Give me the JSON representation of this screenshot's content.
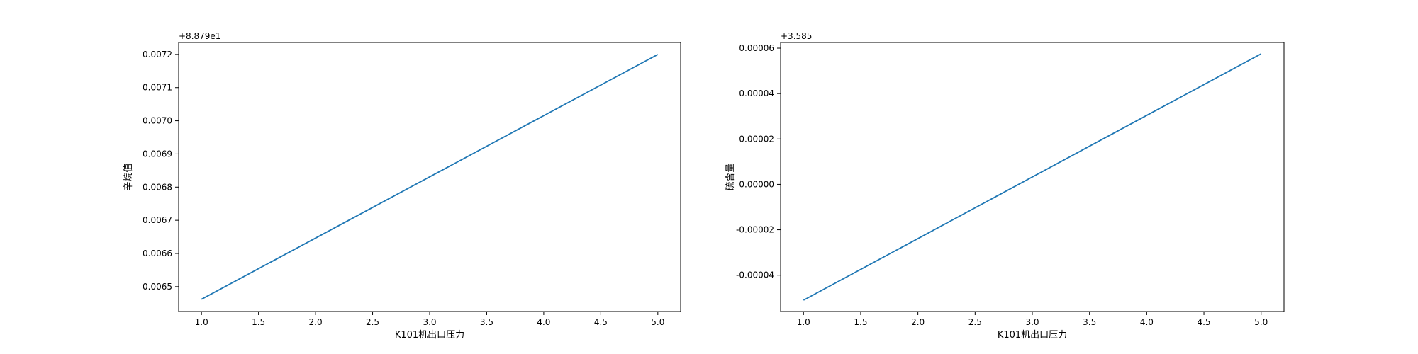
{
  "chart_data": [
    {
      "type": "line",
      "title": "",
      "xlabel": "K101机出口压力",
      "ylabel": "辛烷值",
      "offset_label": "+8.879e1",
      "xlim": [
        0.8,
        5.2
      ],
      "ylim": [
        0.006425,
        0.007236
      ],
      "xticks": [
        1.0,
        1.5,
        2.0,
        2.5,
        3.0,
        3.5,
        4.0,
        4.5,
        5.0
      ],
      "xtick_labels": [
        "1.0",
        "1.5",
        "2.0",
        "2.5",
        "3.0",
        "3.5",
        "4.0",
        "4.5",
        "5.0"
      ],
      "yticks": [
        0.0065,
        0.0066,
        0.0067,
        0.0068,
        0.0069,
        0.007,
        0.0071,
        0.0072
      ],
      "ytick_labels": [
        "0.0065",
        "0.0066",
        "0.0067",
        "0.0068",
        "0.0069",
        "0.0070",
        "0.0071",
        "0.0072"
      ],
      "grid": false,
      "series": [
        {
          "x": [
            1.0,
            5.0
          ],
          "y": [
            0.006462,
            0.0072
          ],
          "color": "#1f77b4"
        }
      ]
    },
    {
      "type": "line",
      "title": "",
      "xlabel": "K101机出口压力",
      "ylabel": "硫含量",
      "offset_label": "+3.585",
      "xlim": [
        0.8,
        5.2
      ],
      "ylim": [
        -5.6e-05,
        6.25e-05
      ],
      "xticks": [
        1.0,
        1.5,
        2.0,
        2.5,
        3.0,
        3.5,
        4.0,
        4.5,
        5.0
      ],
      "xtick_labels": [
        "1.0",
        "1.5",
        "2.0",
        "2.5",
        "3.0",
        "3.5",
        "4.0",
        "4.5",
        "5.0"
      ],
      "yticks": [
        -4e-05,
        -2e-05,
        0.0,
        2e-05,
        4e-05,
        6e-05
      ],
      "ytick_labels": [
        "-0.00004",
        "-0.00002",
        "0.00000",
        "0.00002",
        "0.00004",
        "0.00006"
      ],
      "grid": false,
      "series": [
        {
          "x": [
            1.0,
            5.0
          ],
          "y": [
            -5.1e-05,
            5.75e-05
          ],
          "color": "#1f77b4"
        }
      ]
    }
  ]
}
